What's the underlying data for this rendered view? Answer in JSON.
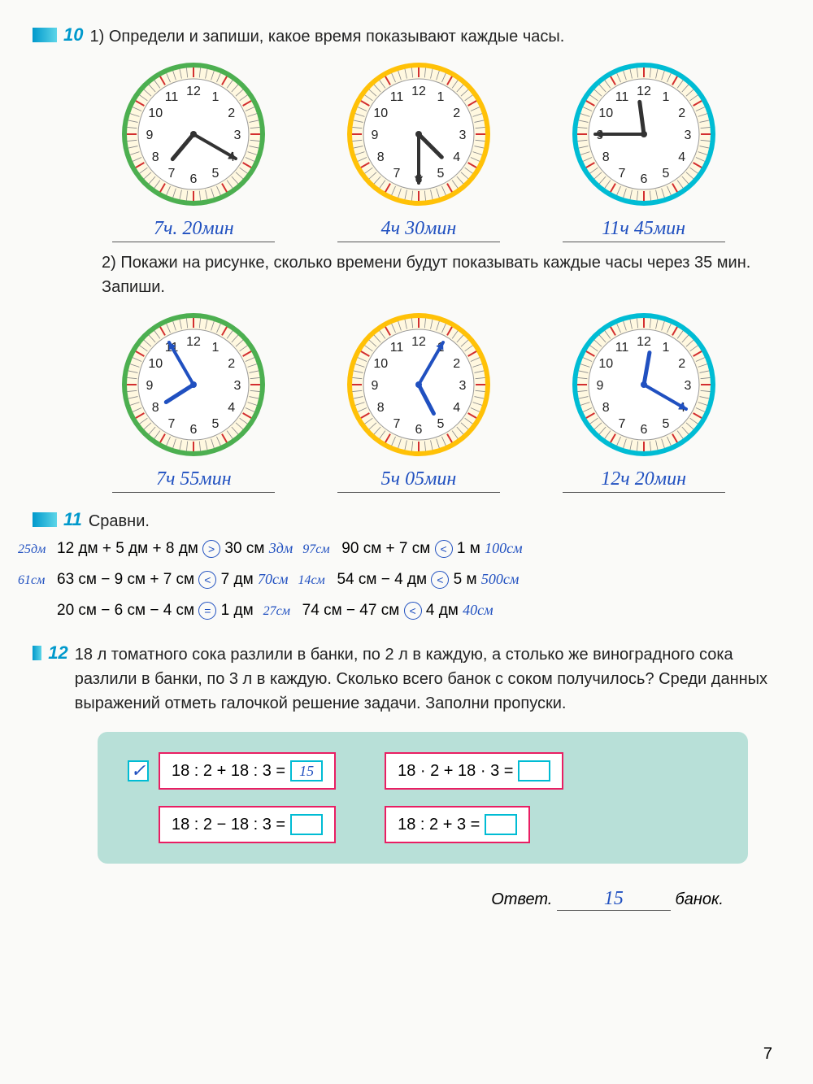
{
  "page_number": "7",
  "ex10": {
    "num": "10",
    "part1_label": "1)",
    "part1_text": "Определи и запиши, какое время показывают каждые часы.",
    "clocks1": [
      {
        "border_color": "#4caf50",
        "hour": 7,
        "minute": 20,
        "hand_color": "#333",
        "answer": "7ч. 20мин"
      },
      {
        "border_color": "#ffc107",
        "hour": 4,
        "minute": 30,
        "hand_color": "#333",
        "answer": "4ч 30мин"
      },
      {
        "border_color": "#00bcd4",
        "hour": 11,
        "minute": 45,
        "hand_color": "#333",
        "answer": "11ч 45мин"
      }
    ],
    "part2_label": "2)",
    "part2_text": "Покажи на рисунке, сколько времени будут показывать каждые часы через 35 мин. Запиши.",
    "clocks2": [
      {
        "border_color": "#4caf50",
        "hour": 7,
        "minute": 55,
        "hand_color": "#2050c0",
        "answer": "7ч 55мин"
      },
      {
        "border_color": "#ffc107",
        "hour": 5,
        "minute": 5,
        "hand_color": "#2050c0",
        "answer": "5ч 05мин"
      },
      {
        "border_color": "#00bcd4",
        "hour": 12,
        "minute": 20,
        "hand_color": "#2050c0",
        "answer": "12ч 20мин"
      }
    ]
  },
  "ex11": {
    "num": "11",
    "title": "Сравни.",
    "rows": [
      {
        "left": {
          "prefix": "25дм",
          "text": "12 дм + 5 дм + 8 дм",
          "sign": ">",
          "right": "30 см",
          "suffix": "3дм"
        },
        "right": {
          "prefix": "97см",
          "text": "90 см + 7 см",
          "sign": "<",
          "right": "1 м",
          "suffix": "100см"
        }
      },
      {
        "left": {
          "prefix": "61см",
          "text": "63 см − 9 см + 7 см",
          "sign": "<",
          "right": "7 дм",
          "suffix": "70см"
        },
        "right": {
          "prefix": "14см",
          "text": "54 см − 4 дм",
          "sign": "<",
          "right": "5 м",
          "suffix": "500см"
        }
      },
      {
        "left": {
          "prefix": "",
          "text": "20 см − 6 см − 4 см",
          "sign": "=",
          "right": "1 дм",
          "suffix": ""
        },
        "right": {
          "prefix": "27см",
          "text": "74 см − 47 см",
          "sign": "<",
          "right": "4 дм",
          "suffix": "40см"
        }
      }
    ]
  },
  "ex12": {
    "num": "12",
    "text": "18 л томатного сока разлили в банки, по 2 л в каждую, а столько же виноградного сока разлили в банки, по 3 л в каждую. Сколько всего банок с соком получилось? Среди данных выражений отметь галочкой решение задачи. Заполни пропуски.",
    "expressions": [
      {
        "expr": "18 : 2 + 18 : 3 =",
        "result": "15",
        "checked": true
      },
      {
        "expr": "18 · 2 + 18 · 3 =",
        "result": "",
        "checked": false
      },
      {
        "expr": "18 : 2 − 18 : 3 =",
        "result": "",
        "checked": false
      },
      {
        "expr": "18 : 2 + 3 =",
        "result": "",
        "checked": false
      }
    ],
    "answer_label": "Ответ.",
    "answer_value": "15",
    "answer_unit": "банок."
  },
  "clock_style": {
    "radius": 90,
    "face_color": "#ffffff",
    "tick_color": "#d32f2f",
    "number_color": "#222",
    "number_fontsize": 16
  }
}
